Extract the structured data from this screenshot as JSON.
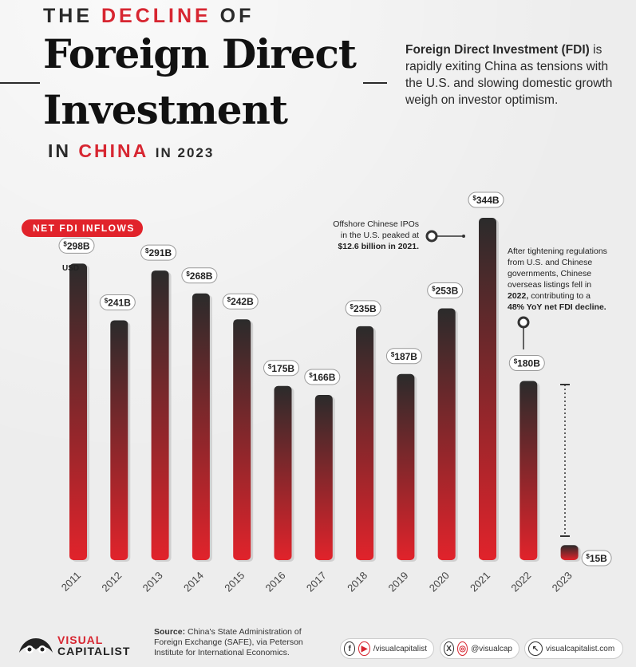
{
  "header": {
    "line1_pre": "THE",
    "line1_accent": "DECLINE",
    "line1_post": "OF",
    "big1": "Foreign Direct",
    "big2": "Investment",
    "line3_pre": "IN",
    "line3_accent": "CHINA",
    "line3_post": "IN 2023"
  },
  "intro": {
    "bold": "Foreign Direct Investment (FDI)",
    "rest": " is rapidly exiting China as tensions with the U.S. and slowing domestic growth weigh on investor optimism."
  },
  "legend_pill": "NET FDI INFLOWS",
  "unit_label": "USD",
  "annotation_2021": {
    "line1": "Offshore Chinese IPOs",
    "line2": "in the U.S. peaked at",
    "line3_bold": "$12.6 billion in 2021."
  },
  "annotation_2022": {
    "line1": "After tightening regulations",
    "line2": "from U.S. and Chinese",
    "line3": "governments, Chinese",
    "line4": "overseas listings fell in",
    "line5_bold": "2022,",
    "line5_rest": " contributing to a",
    "line6_bold": "48% YoY net FDI decline."
  },
  "chart_data": {
    "type": "bar",
    "title": "The Decline of Foreign Direct Investment in China in 2023",
    "categories": [
      "2011",
      "2012",
      "2013",
      "2014",
      "2015",
      "2016",
      "2017",
      "2018",
      "2019",
      "2020",
      "2021",
      "2022",
      "2023"
    ],
    "values": [
      298,
      241,
      291,
      268,
      242,
      175,
      166,
      235,
      187,
      253,
      344,
      180,
      15
    ],
    "value_labels": [
      "298B",
      "241B",
      "291B",
      "268B",
      "242B",
      "175B",
      "166B",
      "235B",
      "187B",
      "253B",
      "344B",
      "180B",
      "15B"
    ],
    "value_prefix": "$",
    "unit": "USD",
    "ylim": [
      0,
      344
    ],
    "grid": false,
    "colors": {
      "top": "#2b2b2b",
      "bottom": "#e1232b"
    }
  },
  "footer": {
    "logo_line1": "VISUAL",
    "logo_line2": "CAPITALIST",
    "source_bold": "Source:",
    "source_rest": " China's State Administration of Foreign Exchange (SAFE), via Peterson Institute for International Economics.",
    "handle1": "/visualcapitalist",
    "handle2": "@visualcap",
    "handle3": "visualcapitalist.com",
    "icon1": "facebook-icon",
    "icon2": "youtube-icon",
    "icon3": "x-icon",
    "icon4": "instagram-icon",
    "icon5": "cursor-icon"
  }
}
